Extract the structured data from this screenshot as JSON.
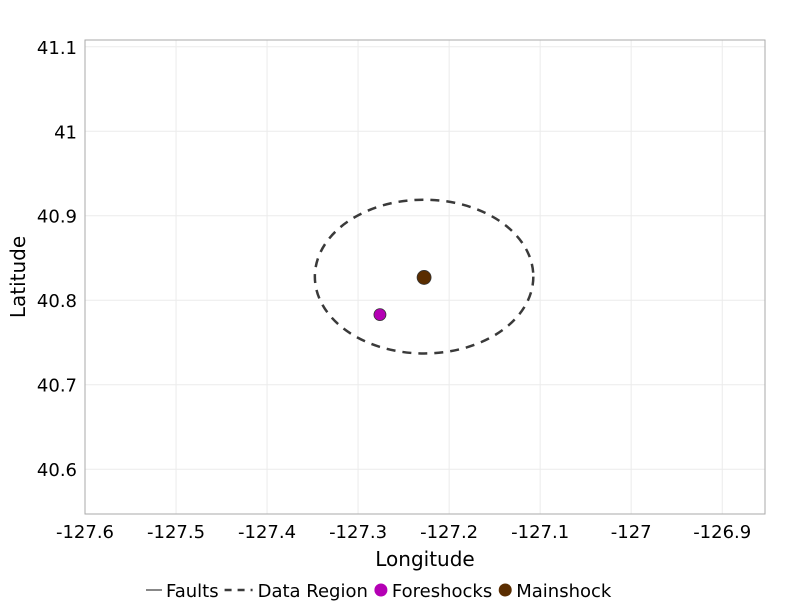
{
  "chart_data": {
    "type": "scatter",
    "title": "",
    "xlabel": "Longitude",
    "ylabel": "Latitude",
    "xlim": [
      -127.6,
      -126.853
    ],
    "ylim": [
      40.547,
      41.108
    ],
    "grid": true,
    "x_ticks": [
      -127.6,
      -127.5,
      -127.4,
      -127.3,
      -127.2,
      -127.1,
      -127,
      -126.9
    ],
    "x_tick_labels": [
      "-127.6",
      "-127.5",
      "-127.4",
      "-127.3",
      "-127.2",
      "-127.1",
      "-127",
      "-126.9"
    ],
    "y_ticks": [
      40.6,
      40.7,
      40.8,
      40.9,
      41,
      41.1
    ],
    "y_tick_labels": [
      "40.6",
      "40.7",
      "40.8",
      "40.9",
      "41",
      "41.1"
    ],
    "legend_position": "bottom",
    "legend": [
      {
        "name": "Faults",
        "style": "line",
        "color": "#888888"
      },
      {
        "name": "Data Region",
        "style": "dashed",
        "color": "#3a3a3a"
      },
      {
        "name": "Foreshocks",
        "style": "circle",
        "color": "#b400b4"
      },
      {
        "name": "Mainshock",
        "style": "circle",
        "color": "#5a2d00"
      }
    ],
    "data_region": {
      "center": [
        -127.2275,
        40.828
      ],
      "radius_lon": 0.12,
      "radius_lat": 0.091
    },
    "series": [
      {
        "name": "Foreshocks",
        "color": "#b400b4",
        "points": [
          [
            -127.276,
            40.783
          ]
        ]
      },
      {
        "name": "Mainshock",
        "color": "#5a2d00",
        "points": [
          [
            -127.2275,
            40.827
          ]
        ]
      }
    ]
  }
}
